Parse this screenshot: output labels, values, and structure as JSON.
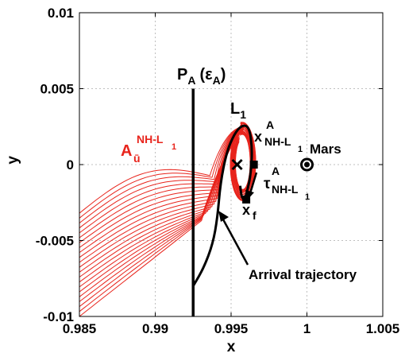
{
  "chart_data": {
    "type": "line",
    "xlabel": "x",
    "ylabel": "y",
    "xlim": [
      0.985,
      1.005
    ],
    "ylim": [
      -0.01,
      0.01
    ],
    "xticks": [
      0.985,
      0.99,
      0.995,
      1,
      1.005
    ],
    "xtick_labels": [
      "0.985",
      "0.99",
      "0.995",
      "1",
      "1.005"
    ],
    "yticks": [
      -0.01,
      -0.005,
      0,
      0.005,
      0.01
    ],
    "ytick_labels": [
      "-0.01",
      "-0.005",
      "0",
      "0.005",
      "0.01"
    ],
    "grid": true,
    "colors": {
      "manifold": "#e8241c",
      "trajectory": "#000000",
      "grid": "#bfbfbf"
    },
    "poincare_section": {
      "x": 0.9925,
      "y_range": [
        -0.01,
        0.005
      ]
    },
    "points": [
      {
        "name": "L1",
        "x": 0.9954,
        "y": 0.0,
        "marker": "x"
      },
      {
        "name": "x_NH-L1^A",
        "x": 0.9965,
        "y": 0.0,
        "marker": "square"
      },
      {
        "name": "x_f",
        "x": 0.996,
        "y": -0.0023,
        "marker": "square"
      },
      {
        "name": "Mars",
        "x": 1.0,
        "y": 0.0,
        "marker": "circle"
      }
    ],
    "arrival_trajectory": {
      "x": [
        0.9925,
        0.9932,
        0.9938,
        0.9941,
        0.9943,
        0.9947,
        0.9952,
        0.9957,
        0.9962,
        0.9964,
        0.9963,
        0.9961,
        0.9959,
        0.9957,
        0.9956
      ],
      "y": [
        -0.008,
        -0.0068,
        -0.0052,
        -0.0035,
        -0.0012,
        0.0008,
        0.002,
        0.0026,
        0.0025,
        0.001,
        -0.0006,
        -0.0016,
        -0.0023,
        -0.0022,
        -0.0014
      ]
    },
    "manifold_tubes": {
      "count": 22,
      "x_start": 0.985,
      "y_start_range": [
        -0.0032,
        -0.01
      ]
    },
    "annotations": {
      "section_label": {
        "main": "P",
        "sub": "A",
        "paren_open": "(ε",
        "paren_sub": "A",
        "paren_close": ")"
      },
      "l1_label": {
        "main": "L",
        "sub": "1"
      },
      "x_label": {
        "main": "x",
        "sup": "A",
        "sub": "NH-L",
        "sub2": "1"
      },
      "mars_label": "Mars",
      "tau_label": {
        "main": "τ",
        "sup": "A",
        "sub": "NH-L",
        "sub2": "1"
      },
      "xf_label": {
        "main": "x",
        "sub": "f"
      },
      "manifold_label": {
        "main": "A",
        "sub": "ū",
        "sup": "NH-L",
        "sup2": "1"
      },
      "arrival_label": "Arrival trajectory"
    }
  }
}
